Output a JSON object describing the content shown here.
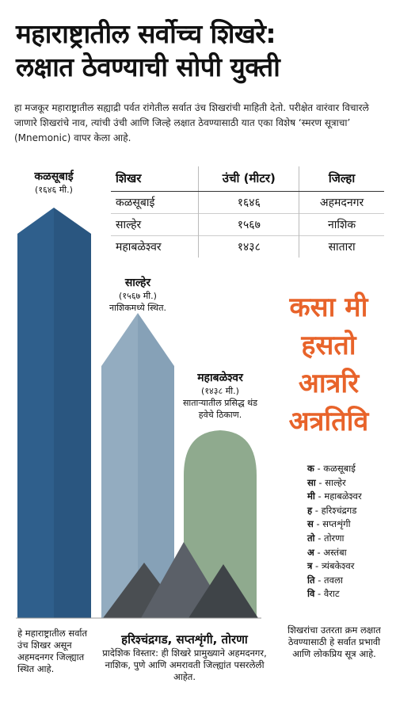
{
  "header": {
    "title_lines": [
      "महाराष्ट्रातील सर्वोच्च शिखरे:",
      "लक्षात ठेवण्याची सोपी युक्ती"
    ],
    "intro": "हा मजकूर महाराष्ट्रातील सह्याद्री पर्वत रांगेतील सर्वात उंच शिखरांची माहिती देतो. परीक्षेत वारंवार विचारले जाणारे शिखरांचे नाव, त्यांची उंची आणि जिल्हे लक्षात ठेवण्यासाठी यात एका विशेष ‘स्मरण सूत्राचा’ (Mnemonic) वापर केला आहे."
  },
  "table": {
    "headers": [
      "शिखर",
      "उंची (मीटर)",
      "जिल्हा"
    ],
    "rows": [
      [
        "कळसूबाई",
        "१६४६",
        "अहमदनगर"
      ],
      [
        "साल्हेर",
        "१५६७",
        "नाशिक"
      ],
      [
        "महाबळेश्वर",
        "१४३८",
        "सातारा"
      ]
    ]
  },
  "peaks": [
    {
      "name": "कळसूबाई",
      "height": "(१६४६ मी.)"
    },
    {
      "name": "साल्हेर",
      "height": "(१५६७ मी.)",
      "note": "नाशिकमध्ये स्थित."
    },
    {
      "name": "महाबळेश्वर",
      "height": "(१४३८ मी.)",
      "note": "साताऱ्यातील प्रसिद्ध थंड हवेचे ठिकाण."
    }
  ],
  "mnemonic": [
    "कसा मी",
    "हसतो",
    "आत्ररि",
    "अत्रतिवि"
  ],
  "legend": [
    {
      "key": "क",
      "text": "- कळसूबाई"
    },
    {
      "key": "सा",
      "text": "- साल्हेर"
    },
    {
      "key": "मी",
      "text": "- महाबळेश्वर"
    },
    {
      "key": "ह",
      "text": "- हरिश्चंद्रगड"
    },
    {
      "key": "स",
      "text": "- सप्तशृंगी"
    },
    {
      "key": "तो",
      "text": "- तोरणा"
    },
    {
      "key": "अ",
      "text": "- अस्तंबा"
    },
    {
      "key": "त्र",
      "text": "- त्र्यंबकेश्वर"
    },
    {
      "key": "ति",
      "text": "- तवला"
    },
    {
      "key": "वि",
      "text": "- वैराट"
    }
  ],
  "footer": {
    "left": "हे महाराष्ट्रातील सर्वात उंच शिखर असून अहमदनगर जिल्ह्यात स्थित आहे.",
    "middle_title": "हरिश्चंद्रगड, सप्तशृंगी, तोरणा",
    "middle_text": "प्रादेशिक विस्तार: ही शिखरे प्रामुख्याने अहमदनगर, नाशिक, पुणे आणि अमरावती जिल्ह्यांत पसरलेली आहेत.",
    "right": "शिखरांचा उतरता क्रम लक्षात ठेवण्यासाठी हे सर्वात प्रभावी आणि लोकप्रिय सूत्र आहे."
  }
}
